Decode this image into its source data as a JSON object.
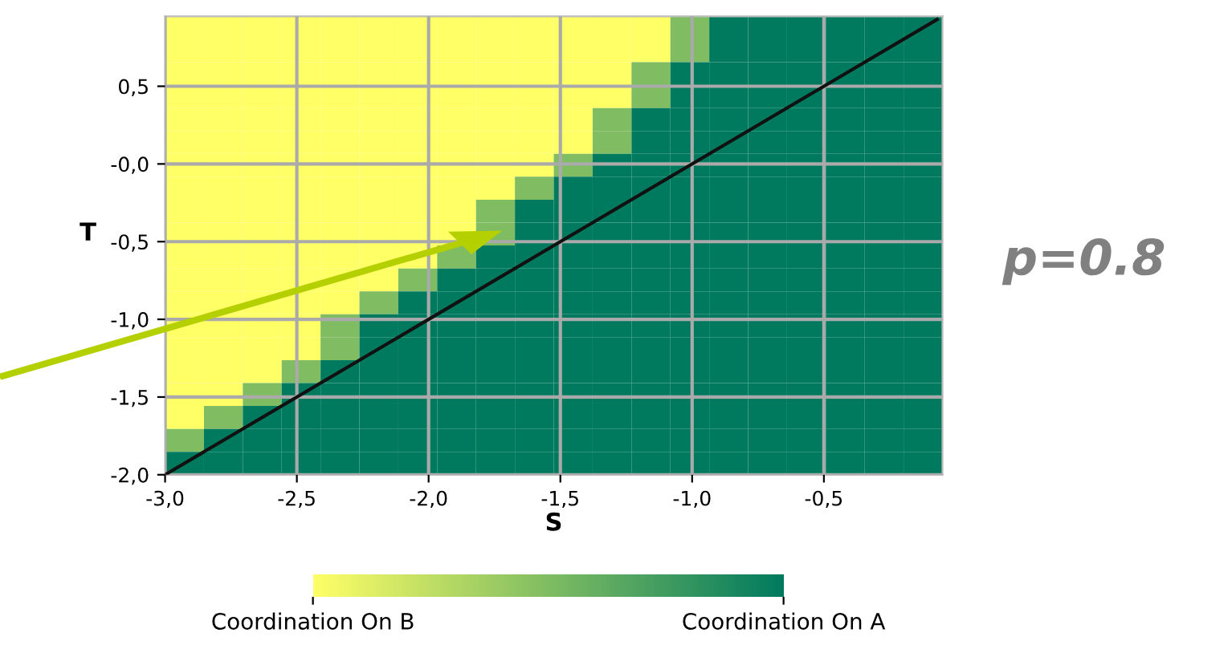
{
  "chart_data": {
    "type": "heatmap",
    "xlabel": "S",
    "ylabel": "T",
    "xlim": [
      -3.0,
      -0.05
    ],
    "ylim": [
      -2.0,
      0.95
    ],
    "xticks": [
      {
        "value": -3.0,
        "label": "-3,0"
      },
      {
        "value": -2.5,
        "label": "-2,5"
      },
      {
        "value": -2.0,
        "label": "-2,0"
      },
      {
        "value": -1.5,
        "label": "-1,5"
      },
      {
        "value": -1.0,
        "label": "-1,0"
      },
      {
        "value": -0.5,
        "label": "-0,5"
      }
    ],
    "yticks": [
      {
        "value": -2.0,
        "label": "-2,0"
      },
      {
        "value": -1.5,
        "label": "-1,5"
      },
      {
        "value": -1.0,
        "label": "-1,0"
      },
      {
        "value": -0.5,
        "label": "-0,5"
      },
      {
        "value": 0.0,
        "label": "-0,0"
      },
      {
        "value": 0.5,
        "label": "0,5"
      }
    ],
    "grid": true,
    "colors": [
      "#ffff66",
      "#007a5e"
    ],
    "clim": [
      0,
      1
    ],
    "cticks": [
      {
        "value": 0,
        "label": "Coordination On B"
      },
      {
        "value": 1,
        "label": "Coordination On A"
      }
    ],
    "cells": [
      [
        0,
        0,
        0,
        0,
        0,
        0,
        0,
        0,
        0,
        0,
        0,
        0,
        0,
        0.5,
        1,
        1,
        1,
        1,
        1,
        1
      ],
      [
        0,
        0,
        0,
        0,
        0,
        0,
        0,
        0,
        0,
        0,
        0,
        0,
        0,
        0.5,
        1,
        1,
        1,
        1,
        1,
        1
      ],
      [
        0,
        0,
        0,
        0,
        0,
        0,
        0,
        0,
        0,
        0,
        0,
        0,
        0.5,
        1,
        1,
        1,
        1,
        1,
        1,
        1
      ],
      [
        0,
        0,
        0,
        0,
        0,
        0,
        0,
        0,
        0,
        0,
        0,
        0,
        0.5,
        1,
        1,
        1,
        1,
        1,
        1,
        1
      ],
      [
        0,
        0,
        0,
        0,
        0,
        0,
        0,
        0,
        0,
        0,
        0,
        0.5,
        1,
        1,
        1,
        1,
        1,
        1,
        1,
        1
      ],
      [
        0,
        0,
        0,
        0,
        0,
        0,
        0,
        0,
        0,
        0,
        0,
        0.5,
        1,
        1,
        1,
        1,
        1,
        1,
        1,
        1
      ],
      [
        0,
        0,
        0,
        0,
        0,
        0,
        0,
        0,
        0,
        0,
        0.5,
        1,
        1,
        1,
        1,
        1,
        1,
        1,
        1,
        1
      ],
      [
        0,
        0,
        0,
        0,
        0,
        0,
        0,
        0,
        0,
        0.5,
        1,
        1,
        1,
        1,
        1,
        1,
        1,
        1,
        1,
        1
      ],
      [
        0,
        0,
        0,
        0,
        0,
        0,
        0,
        0,
        0.5,
        1,
        1,
        1,
        1,
        1,
        1,
        1,
        1,
        1,
        1,
        1
      ],
      [
        0,
        0,
        0,
        0,
        0,
        0,
        0,
        0,
        0.5,
        1,
        1,
        1,
        1,
        1,
        1,
        1,
        1,
        1,
        1,
        1
      ],
      [
        0,
        0,
        0,
        0,
        0,
        0,
        0,
        0.5,
        1,
        1,
        1,
        1,
        1,
        1,
        1,
        1,
        1,
        1,
        1,
        1
      ],
      [
        0,
        0,
        0,
        0,
        0,
        0,
        0.5,
        1,
        1,
        1,
        1,
        1,
        1,
        1,
        1,
        1,
        1,
        1,
        1,
        1
      ],
      [
        0,
        0,
        0,
        0,
        0,
        0.5,
        1,
        1,
        1,
        1,
        1,
        1,
        1,
        1,
        1,
        1,
        1,
        1,
        1,
        1
      ],
      [
        0,
        0,
        0,
        0,
        0.5,
        1,
        1,
        1,
        1,
        1,
        1,
        1,
        1,
        1,
        1,
        1,
        1,
        1,
        1,
        1
      ],
      [
        0,
        0,
        0,
        0,
        0.5,
        1,
        1,
        1,
        1,
        1,
        1,
        1,
        1,
        1,
        1,
        1,
        1,
        1,
        1,
        1
      ],
      [
        0,
        0,
        0,
        0.5,
        1,
        1,
        1,
        1,
        1,
        1,
        1,
        1,
        1,
        1,
        1,
        1,
        1,
        1,
        1,
        1
      ],
      [
        0,
        0,
        0.5,
        1,
        1,
        1,
        1,
        1,
        1,
        1,
        1,
        1,
        1,
        1,
        1,
        1,
        1,
        1,
        1,
        1
      ],
      [
        0,
        0.5,
        1,
        1,
        1,
        1,
        1,
        1,
        1,
        1,
        1,
        1,
        1,
        1,
        1,
        1,
        1,
        1,
        1,
        1
      ],
      [
        0.5,
        1,
        1,
        1,
        1,
        1,
        1,
        1,
        1,
        1,
        1,
        1,
        1,
        1,
        1,
        1,
        1,
        1,
        1,
        1
      ],
      [
        1,
        1,
        1,
        1,
        1,
        1,
        1,
        1,
        1,
        1,
        1,
        1,
        1,
        1,
        1,
        1,
        1,
        1,
        1,
        1
      ]
    ],
    "series": [
      {
        "type": "line",
        "color": "#111111",
        "x": [
          -3.0,
          -0.07
        ],
        "values": [
          -2.0,
          0.93
        ]
      }
    ],
    "annotations": [
      "p=0.8"
    ]
  }
}
